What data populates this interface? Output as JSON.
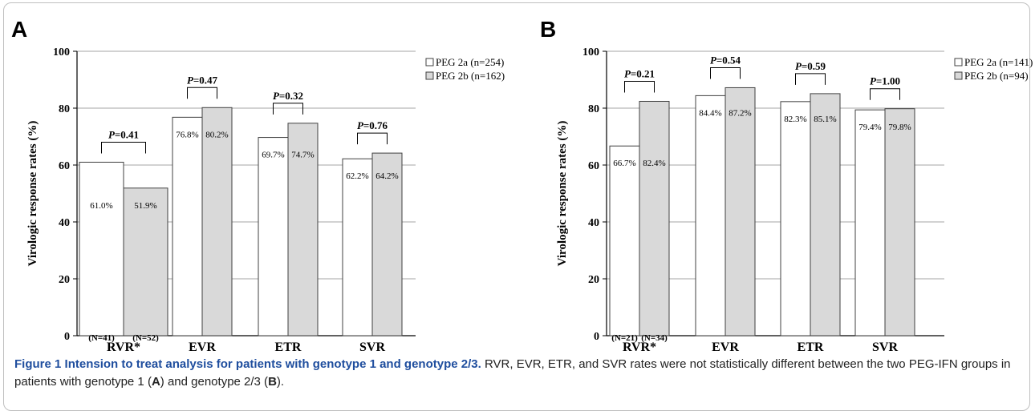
{
  "chart_data": [
    {
      "type": "bar",
      "panel": "A",
      "ylabel": "Virologic response rates  (%)",
      "ylim": [
        0,
        100
      ],
      "yticks": [
        0,
        20,
        40,
        60,
        80,
        100
      ],
      "grid": true,
      "legend_position": "top-right",
      "categories": [
        "RVR*",
        "EVR",
        "ETR",
        "SVR"
      ],
      "series": [
        {
          "name": "PEG 2a (n=254)",
          "color": "#ffffff",
          "values": [
            61.0,
            76.8,
            69.7,
            62.2
          ],
          "labels": [
            "61.0%",
            "76.8%",
            "69.7%",
            "62.2%"
          ]
        },
        {
          "name": "PEG 2b (n=162)",
          "color": "#d9d9d9",
          "values": [
            51.9,
            80.2,
            74.7,
            64.2
          ],
          "labels": [
            "51.9%",
            "80.2%",
            "74.7%",
            "64.2%"
          ]
        }
      ],
      "p_values": [
        "=0.41",
        "=0.47",
        "=0.32",
        "=0.76"
      ],
      "n_labels": [
        "(N=41)",
        "(N=52)"
      ]
    },
    {
      "type": "bar",
      "panel": "B",
      "ylabel": "Virologic response rates  (%)",
      "ylim": [
        0,
        100
      ],
      "yticks": [
        0,
        20,
        40,
        60,
        80,
        100
      ],
      "grid": true,
      "legend_position": "top-right",
      "categories": [
        "RVR*",
        "EVR",
        "ETR",
        "SVR"
      ],
      "series": [
        {
          "name": "PEG 2a (n=141)",
          "color": "#ffffff",
          "values": [
            66.7,
            84.4,
            82.3,
            79.4
          ],
          "labels": [
            "66.7%",
            "84.4%",
            "82.3%",
            "79.4%"
          ]
        },
        {
          "name": "PEG 2b (n=94)",
          "color": "#d9d9d9",
          "values": [
            82.4,
            87.2,
            85.1,
            79.8
          ],
          "labels": [
            "82.4%",
            "87.2%",
            "85.1%",
            "79.8%"
          ]
        }
      ],
      "p_values": [
        "=0.21",
        "=0.54",
        "=0.59",
        "=1.00"
      ],
      "n_labels": [
        "(N=21)",
        "(N=34)"
      ]
    }
  ],
  "caption": {
    "label": "Figure 1",
    "title": "Intension to treat analysis for patients with genotype 1 and genotype 2/3.",
    "text_1": " RVR, EVR, ETR, and SVR rates were not statistically different between the two PEG-IFN groups in patients with genotype 1 (",
    "tag_a": "A",
    "text_2": ") and genotype 2/3 (",
    "tag_b": "B",
    "text_3": ")."
  }
}
